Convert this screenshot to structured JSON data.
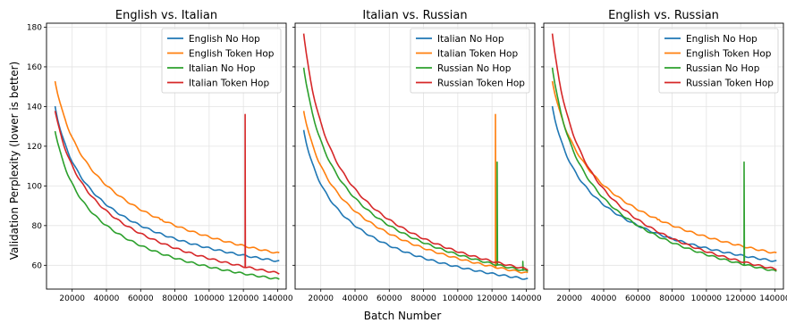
{
  "figure": {
    "xlabel": "Batch Number",
    "ylabel": "Validation Perplexity (lower is better)"
  },
  "colors": {
    "blue": "#1f77b4",
    "orange": "#ff7f0e",
    "green": "#2ca02c",
    "red": "#d62728"
  },
  "chart_data": [
    {
      "type": "line",
      "title": "English vs. Italian",
      "xlabel": "Batch Number",
      "ylabel": "Validation Perplexity (lower is better)",
      "xlim": [
        5000,
        145000
      ],
      "ylim": [
        48,
        182
      ],
      "xticks": [
        20000,
        40000,
        60000,
        80000,
        100000,
        120000,
        140000
      ],
      "yticks": [
        60,
        80,
        100,
        120,
        140,
        160,
        180
      ],
      "grid": true,
      "legend": "top-right",
      "series": [
        {
          "name": "English No Hop",
          "color": "#1f77b4",
          "start": [
            10000,
            140
          ],
          "end": [
            141000,
            62
          ],
          "mid": [
            60000,
            80
          ]
        },
        {
          "name": "English Token Hop",
          "color": "#ff7f0e",
          "start": [
            10000,
            153
          ],
          "end": [
            141000,
            66
          ],
          "mid": [
            60000,
            88
          ],
          "bumps": [
            [
              72000,
              83
            ]
          ]
        },
        {
          "name": "Italian No Hop",
          "color": "#2ca02c",
          "start": [
            10000,
            128
          ],
          "end": [
            141000,
            53
          ],
          "mid": [
            60000,
            70
          ]
        },
        {
          "name": "Italian Token Hop",
          "color": "#d62728",
          "start": [
            10000,
            138
          ],
          "end": [
            141000,
            56
          ],
          "mid": [
            60000,
            76
          ],
          "spikes": [
            [
              121000,
              136
            ]
          ]
        }
      ]
    },
    {
      "type": "line",
      "title": "Italian vs. Russian",
      "xlabel": "Batch Number",
      "ylabel": "Validation Perplexity (lower is better)",
      "xlim": [
        5000,
        145000
      ],
      "ylim": [
        48,
        182
      ],
      "xticks": [
        20000,
        40000,
        60000,
        80000,
        100000,
        120000,
        140000
      ],
      "yticks": [
        60,
        80,
        100,
        120,
        140,
        160,
        180
      ],
      "grid": true,
      "legend": "top-right",
      "series": [
        {
          "name": "Italian No Hop",
          "color": "#1f77b4",
          "start": [
            10000,
            128
          ],
          "end": [
            141000,
            53
          ],
          "mid": [
            60000,
            70
          ]
        },
        {
          "name": "Italian Token Hop",
          "color": "#ff7f0e",
          "start": [
            10000,
            138
          ],
          "end": [
            141000,
            56
          ],
          "mid": [
            60000,
            76
          ],
          "spikes": [
            [
              122000,
              136
            ]
          ]
        },
        {
          "name": "Russian No Hop",
          "color": "#2ca02c",
          "start": [
            10000,
            160
          ],
          "end": [
            141000,
            57
          ],
          "mid": [
            60000,
            80
          ],
          "spikes": [
            [
              123000,
              112
            ],
            [
              138000,
              62
            ]
          ]
        },
        {
          "name": "Russian Token Hop",
          "color": "#d62728",
          "start": [
            10000,
            177
          ],
          "end": [
            141000,
            58
          ],
          "mid": [
            60000,
            83
          ]
        }
      ]
    },
    {
      "type": "line",
      "title": "English vs. Russian",
      "xlabel": "Batch Number",
      "ylabel": "Validation Perplexity (lower is better)",
      "xlim": [
        5000,
        145000
      ],
      "ylim": [
        48,
        182
      ],
      "xticks": [
        20000,
        40000,
        60000,
        80000,
        100000,
        120000,
        140000
      ],
      "yticks": [
        60,
        80,
        100,
        120,
        140,
        160,
        180
      ],
      "grid": true,
      "legend": "top-right",
      "series": [
        {
          "name": "English No Hop",
          "color": "#1f77b4",
          "start": [
            10000,
            140
          ],
          "end": [
            141000,
            62
          ],
          "mid": [
            60000,
            80
          ]
        },
        {
          "name": "English Token Hop",
          "color": "#ff7f0e",
          "start": [
            10000,
            153
          ],
          "end": [
            141000,
            66
          ],
          "mid": [
            60000,
            88
          ],
          "bumps": [
            [
              72000,
              83
            ]
          ]
        },
        {
          "name": "Russian No Hop",
          "color": "#2ca02c",
          "start": [
            10000,
            160
          ],
          "end": [
            141000,
            57
          ],
          "mid": [
            60000,
            80
          ],
          "spikes": [
            [
              122000,
              112
            ]
          ]
        },
        {
          "name": "Russian Token Hop",
          "color": "#d62728",
          "start": [
            10000,
            177
          ],
          "end": [
            141000,
            58
          ],
          "mid": [
            60000,
            83
          ]
        }
      ]
    }
  ]
}
